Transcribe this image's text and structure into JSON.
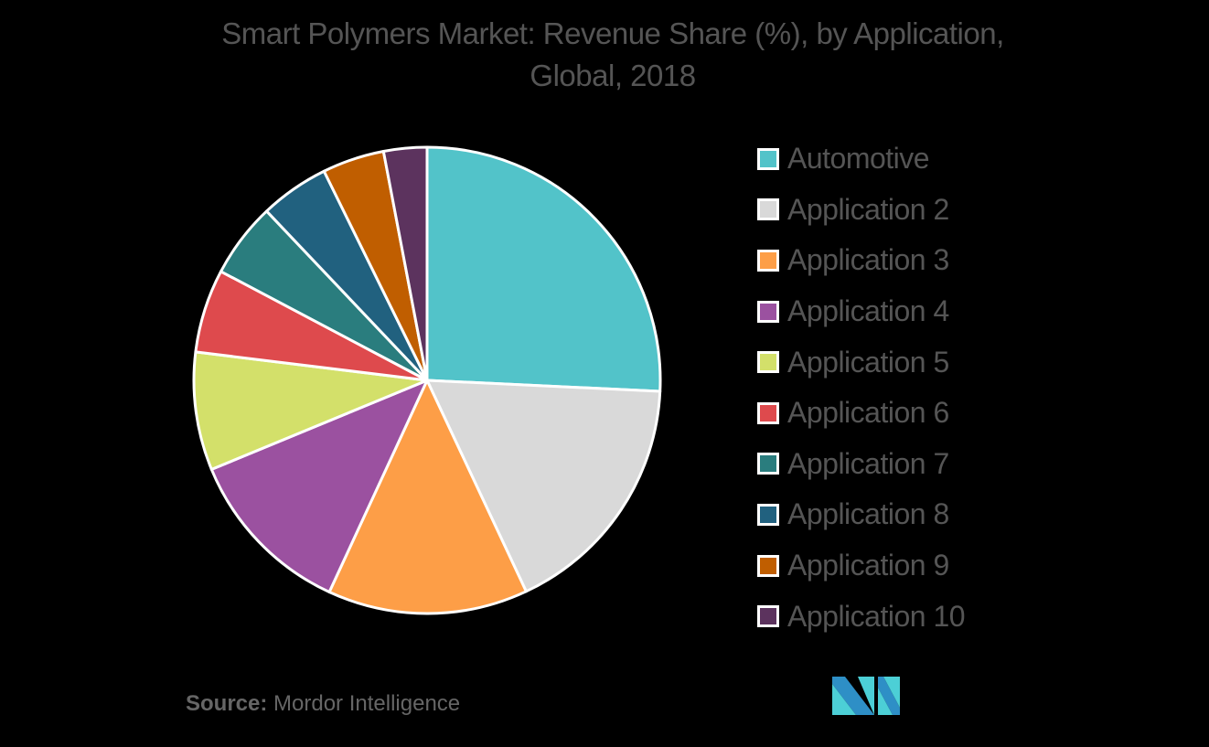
{
  "title_line1": "Smart Polymers Market: Revenue Share (%), by Application,",
  "title_line2": "Global, 2018",
  "source_label": "Source:",
  "source_value": "Mordor Intelligence",
  "logo": "mordor-intelligence-logo",
  "chart_data": {
    "type": "pie",
    "title": "Smart Polymers Market: Revenue Share (%), by Application, Global, 2018",
    "categories": [
      "Automotive",
      "Application 2",
      "Application 3",
      "Application 4",
      "Application 5",
      "Application 6",
      "Application 7",
      "Application 8",
      "Application 9",
      "Application 10"
    ],
    "values": [
      25.8,
      17.3,
      13.9,
      11.9,
      8.2,
      5.8,
      5.2,
      4.8,
      4.3,
      3.0
    ],
    "colors": [
      "#52c3c9",
      "#d9d9d9",
      "#fd9e47",
      "#9b51a0",
      "#d3e06a",
      "#de4a4d",
      "#2a7d7e",
      "#21617f",
      "#c05e00",
      "#5c335e"
    ],
    "legend_position": "right",
    "start_angle_deg": 0,
    "direction": "clockwise"
  },
  "legend": [
    {
      "label": "Automotive",
      "color": "#52c3c9"
    },
    {
      "label": "Application 2",
      "color": "#d9d9d9"
    },
    {
      "label": "Application 3",
      "color": "#fd9e47"
    },
    {
      "label": "Application 4",
      "color": "#9b51a0"
    },
    {
      "label": "Application 5",
      "color": "#d3e06a"
    },
    {
      "label": "Application 6",
      "color": "#de4a4d"
    },
    {
      "label": "Application 7",
      "color": "#2a7d7e"
    },
    {
      "label": "Application 8",
      "color": "#21617f"
    },
    {
      "label": "Application 9",
      "color": "#c05e00"
    },
    {
      "label": "Application 10",
      "color": "#5c335e"
    }
  ]
}
